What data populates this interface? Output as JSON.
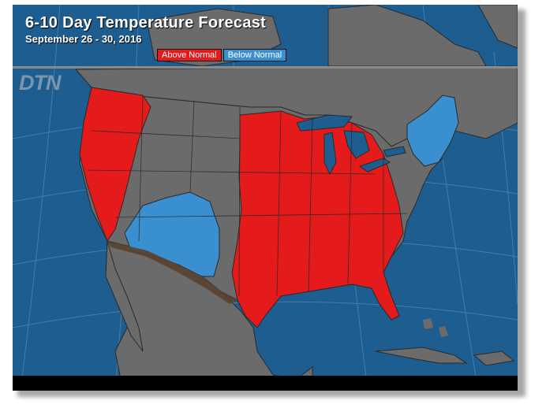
{
  "header": {
    "title": "6-10 Day Temperature Forecast",
    "subtitle": "September 26 - 30, 2016"
  },
  "legend": [
    {
      "label": "Above Normal",
      "color": "#e51a1a"
    },
    {
      "label": "Below Normal",
      "color": "#3a8fd0"
    }
  ],
  "watermark": "DTN",
  "colors": {
    "ocean": "#1d5d8f",
    "land_normal": "#6b6b6b",
    "above_normal": "#e51a1a",
    "below_normal": "#3a8fd0",
    "state_border": "#2a2a2a"
  }
}
